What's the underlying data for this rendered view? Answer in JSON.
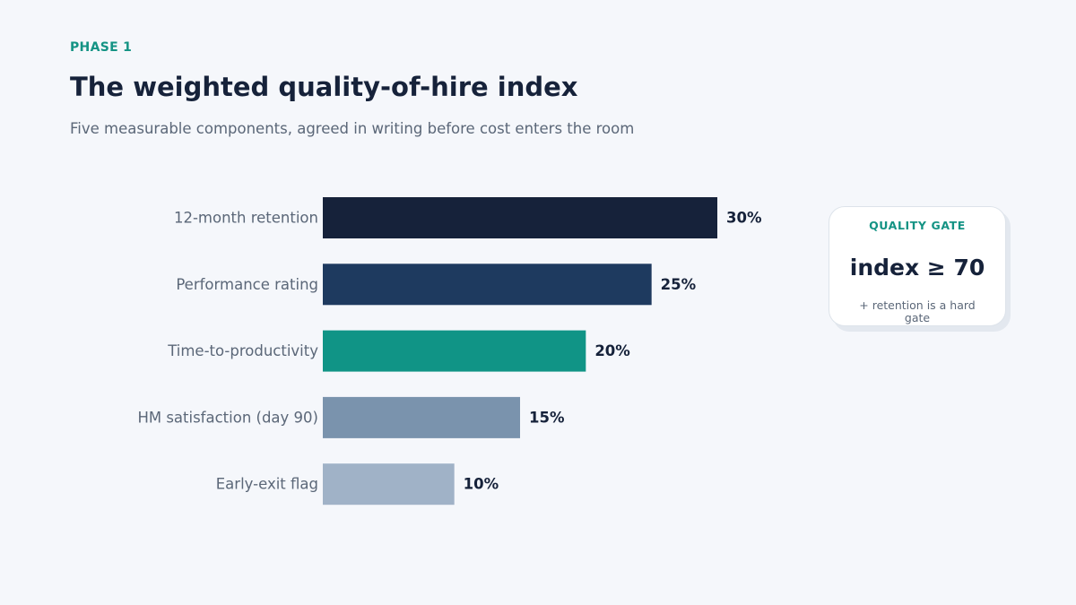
{
  "header": {
    "eyebrow": "PHASE 1",
    "title": "The weighted quality-of-hire index",
    "subtitle": "Five measurable components, agreed in writing before cost enters the room"
  },
  "chart_data": {
    "type": "bar",
    "orientation": "horizontal",
    "categories": [
      "12-month retention",
      "Performance rating",
      "Time-to-productivity",
      "HM satisfaction (day 90)",
      "Early-exit flag"
    ],
    "values": [
      30,
      25,
      20,
      15,
      10
    ],
    "value_labels": [
      "30%",
      "25%",
      "20%",
      "15%",
      "10%"
    ],
    "unit": "%",
    "xlim": [
      0,
      30
    ],
    "colors": [
      "#16223a",
      "#1e3a5f",
      "#109486",
      "#7a93ad",
      "#a0b2c7"
    ],
    "grid": false
  },
  "gate_card": {
    "title": "QUALITY GATE",
    "value": "index ≥ 70",
    "note": "+ retention is a hard gate"
  }
}
